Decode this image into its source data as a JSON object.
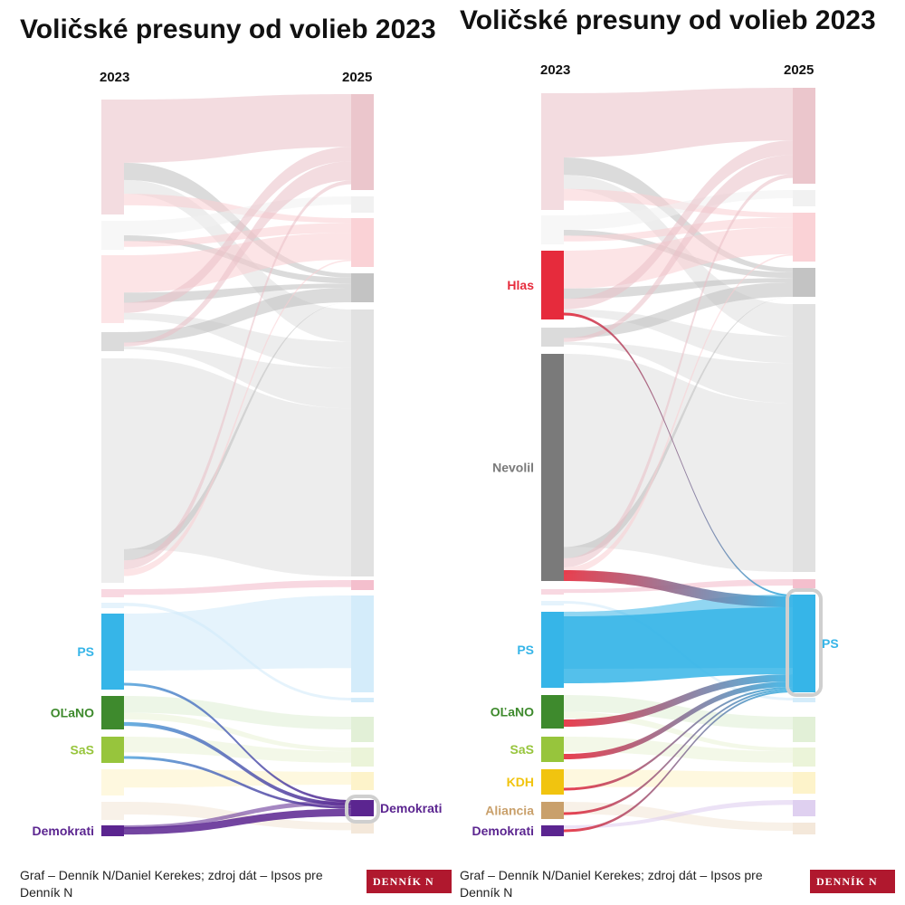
{
  "colors": {
    "Smer": "#e9c0c6",
    "Republika": "#f1f1f1",
    "Hlas": "#e62b3c",
    "HlasPale": "#f9cdd2",
    "SNS": "#bdbdbd",
    "Nevolil": "#7a7a7a",
    "NevolilPale": "#dedede",
    "Pink": "#f3b8c8",
    "PS": "#36b5e8",
    "PSPale": "#cfeaf9",
    "OLaNO": "#3e8a2d",
    "OLaNOPale": "#dfeed3",
    "SaS": "#97c53c",
    "SaSPale": "#e9f3d5",
    "KDH": "#f1c40f",
    "KDHPale": "#fdf2c4",
    "Aliancia": "#c9a06b",
    "AlianciaPale": "#f3e5d6",
    "Demokrati": "#5b2590",
    "DemokratiPale": "#dccbee",
    "brand": "#b0182e"
  },
  "chart_data": [
    {
      "type": "sankey",
      "title": "Voličské presuny od volieb 2023",
      "left_year": "2023",
      "right_year": "2025",
      "highlight": "Demokrati",
      "right_label": "Demokrati",
      "left_labels": [
        {
          "party": "PS",
          "text": "PS"
        },
        {
          "party": "OLaNO",
          "text": "OĽaNO"
        },
        {
          "party": "SaS",
          "text": "SaS"
        },
        {
          "party": "Demokrati",
          "text": "Demokrati"
        }
      ],
      "highlight_flows": [
        {
          "from": "PS",
          "value": 2
        },
        {
          "from": "OLaNO",
          "value": 3
        },
        {
          "from": "SaS",
          "value": 2
        },
        {
          "from": "Demokrati",
          "value": 6
        }
      ]
    },
    {
      "type": "sankey",
      "title": "Voličské presuny od volieb 2023",
      "left_year": "2023",
      "right_year": "2025",
      "highlight": "PS",
      "right_label": "PS",
      "left_labels": [
        {
          "party": "Hlas",
          "text": "Hlas"
        },
        {
          "party": "Nevolil",
          "text": "Nevolil"
        },
        {
          "party": "PS",
          "text": "PS"
        },
        {
          "party": "OLaNO",
          "text": "OĽaNO"
        },
        {
          "party": "SaS",
          "text": "SaS"
        },
        {
          "party": "KDH",
          "text": "KDH"
        },
        {
          "party": "Aliancia",
          "text": "Aliancia"
        },
        {
          "party": "Demokrati",
          "text": "Demokrati"
        }
      ],
      "highlight_flows": [
        {
          "from": "Hlas",
          "value": 1
        },
        {
          "from": "Nevolil",
          "value": 6
        },
        {
          "from": "PS",
          "value": 37
        },
        {
          "from": "OLaNO",
          "value": 4
        },
        {
          "from": "SaS",
          "value": 3
        },
        {
          "from": "KDH",
          "value": 1
        },
        {
          "from": "Aliancia",
          "value": 1
        },
        {
          "from": "Demokrati",
          "value": 1
        }
      ]
    }
  ],
  "footer": {
    "credit": "Graf – Denník N/Daniel Kerekes; zdroj dát – Ipsos pre",
    "credit_line2": "Denník N",
    "logo": "DENNÍK N"
  }
}
